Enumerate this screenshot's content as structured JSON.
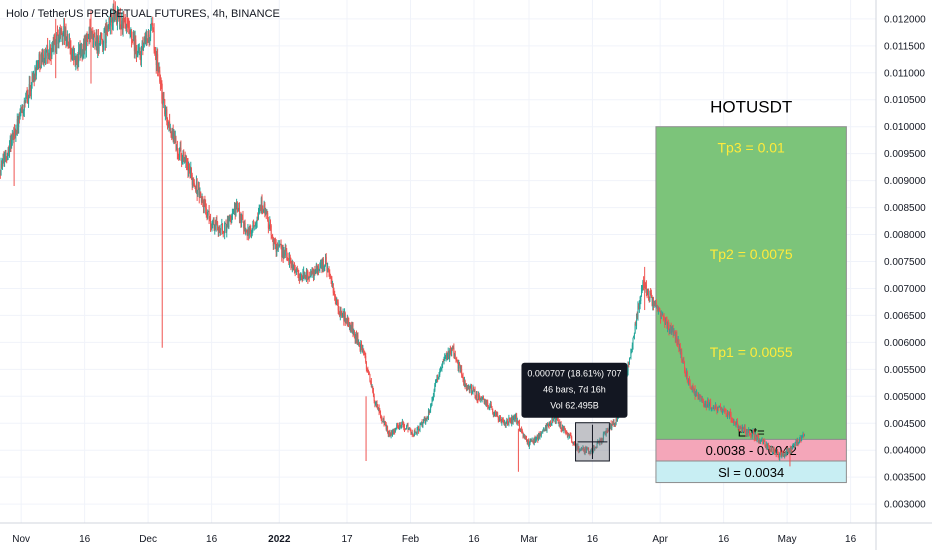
{
  "chart_data": {
    "type": "candlestick",
    "title": "Holo / TetherUS PERPETUAL FUTURES, 4h, BINANCE",
    "colors": {
      "up": "#26a69a",
      "down": "#ef5350",
      "reward": "#7cc47a",
      "entry": "#f4a6b9",
      "risk": "#c8eef3",
      "label": "#ffeb3b"
    },
    "x_axis": {
      "ticks": [
        "Nov",
        "16",
        "Dec",
        "16",
        "2022",
        "17",
        "Feb",
        "16",
        "Mar",
        "16",
        "Apr",
        "16",
        "May",
        "16"
      ],
      "range": [
        "2021-10-27",
        "2022-05-22"
      ]
    },
    "y_axis": {
      "ticks": [
        "0.012000",
        "0.011500",
        "0.011000",
        "0.010500",
        "0.010000",
        "0.009500",
        "0.009000",
        "0.008500",
        "0.008000",
        "0.007500",
        "0.007000",
        "0.006500",
        "0.006000",
        "0.005500",
        "0.005000",
        "0.004500",
        "0.004000",
        "0.003500",
        "0.003000"
      ],
      "range": [
        0.00265,
        0.01235
      ],
      "grid": true,
      "position": "right"
    },
    "price_path": {
      "dates": [
        "2021-10-27",
        "2021-10-30",
        "2021-11-02",
        "2021-11-05",
        "2021-11-08",
        "2021-11-11",
        "2021-11-14",
        "2021-11-17",
        "2021-11-20",
        "2021-11-23",
        "2021-11-26",
        "2021-11-29",
        "2021-12-02",
        "2021-12-05",
        "2021-12-07",
        "2021-12-10",
        "2021-12-13",
        "2021-12-16",
        "2021-12-19",
        "2021-12-22",
        "2021-12-25",
        "2021-12-28",
        "2021-12-31",
        "2022-01-03",
        "2022-01-06",
        "2022-01-09",
        "2022-01-12",
        "2022-01-15",
        "2022-01-18",
        "2022-01-21",
        "2022-01-24",
        "2022-01-27",
        "2022-01-30",
        "2022-02-02",
        "2022-02-05",
        "2022-02-08",
        "2022-02-11",
        "2022-02-14",
        "2022-02-17",
        "2022-02-20",
        "2022-02-23",
        "2022-02-26",
        "2022-03-01",
        "2022-03-04",
        "2022-03-07",
        "2022-03-10",
        "2022-03-13",
        "2022-03-16",
        "2022-03-19",
        "2022-03-22",
        "2022-03-25",
        "2022-03-28",
        "2022-03-30",
        "2022-04-02",
        "2022-04-05",
        "2022-04-08",
        "2022-04-11",
        "2022-04-14",
        "2022-04-17",
        "2022-04-20",
        "2022-04-23",
        "2022-04-26",
        "2022-04-29",
        "2022-05-02",
        "2022-05-05"
      ],
      "prices": [
        0.0092,
        0.0098,
        0.0104,
        0.0112,
        0.0114,
        0.0118,
        0.0112,
        0.0117,
        0.0115,
        0.0121,
        0.0118,
        0.0113,
        0.0118,
        0.0103,
        0.0098,
        0.0093,
        0.0088,
        0.0082,
        0.0081,
        0.0085,
        0.008,
        0.0086,
        0.0078,
        0.0076,
        0.0072,
        0.0073,
        0.0075,
        0.0066,
        0.0063,
        0.0058,
        0.0048,
        0.0043,
        0.0045,
        0.0043,
        0.0046,
        0.0055,
        0.0059,
        0.0052,
        0.005,
        0.0048,
        0.0045,
        0.0046,
        0.0041,
        0.0043,
        0.0046,
        0.0043,
        0.004,
        0.004,
        0.0043,
        0.0046,
        0.0058,
        0.0071,
        0.0068,
        0.0064,
        0.0061,
        0.0052,
        0.0049,
        0.0048,
        0.0047,
        0.0044,
        0.0043,
        0.0041,
        0.0039,
        0.004,
        0.0043
      ]
    },
    "position_tool": {
      "symbol": "HOTUSDT",
      "tp3_label": "Tp3 = 0.01",
      "tp2_label": "Tp2 = 0.0075",
      "tp1_label": "Tp1 = 0.0055",
      "entry_label": "Ent=",
      "entry_range_label": "0.0038 - 0.0042",
      "sl_label": "Sl = 0.0034",
      "top": 0.01,
      "entry_high": 0.0042,
      "entry_low": 0.0038,
      "stop": 0.0034,
      "start_date": "2022-03-31",
      "end_date": "2022-05-15"
    },
    "measure_tooltip": {
      "line1": "0.000707 (18.61%) 707",
      "line2": "46 bars, 7d 16h",
      "line3": "Vol 62.495B",
      "box_start": "2022-03-12",
      "box_end": "2022-03-20",
      "box_low": 0.0038,
      "box_high": 0.00451
    }
  }
}
